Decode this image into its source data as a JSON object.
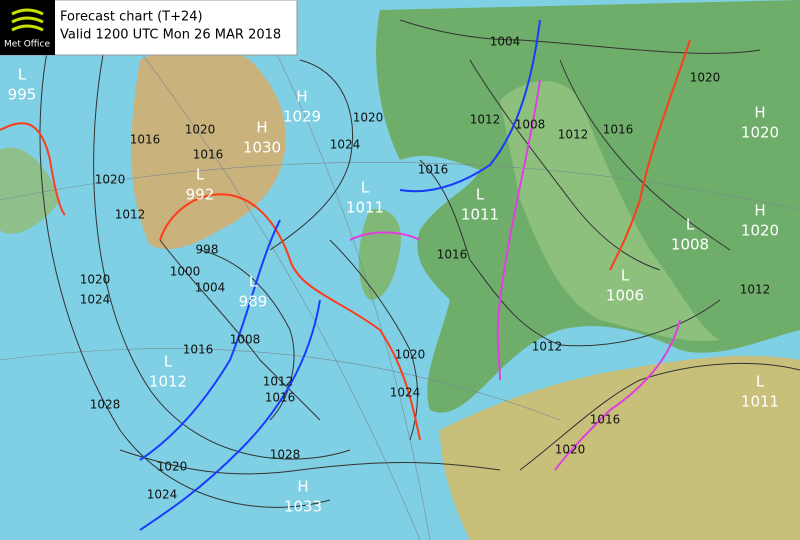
{
  "header": {
    "logo": "Met Office",
    "title": "Forecast chart (T+24)",
    "valid": "Valid 1200 UTC Mon 26 MAR 2018"
  },
  "centers": [
    {
      "type": "L",
      "pressure": 995
    },
    {
      "type": "L",
      "pressure": 992
    },
    {
      "type": "H",
      "pressure": 1029
    },
    {
      "type": "H",
      "pressure": 1030
    },
    {
      "type": "L",
      "pressure": 1011
    },
    {
      "type": "L",
      "pressure": 1011
    },
    {
      "type": "L",
      "pressure": 989
    },
    {
      "type": "L",
      "pressure": 1012
    },
    {
      "type": "H",
      "pressure": 1033
    },
    {
      "type": "L",
      "pressure": 1008
    },
    {
      "type": "L",
      "pressure": 1006
    },
    {
      "type": "H",
      "pressure": 1020
    },
    {
      "type": "H",
      "pressure": 1020
    },
    {
      "type": "L",
      "pressure": 1011
    }
  ],
  "isobar_labels": [
    1004,
    1020,
    1020,
    1024,
    1016,
    1020,
    1012,
    1016,
    1012,
    1008,
    1012,
    1016,
    1016,
    1012,
    1020,
    1024,
    1016,
    1008,
    1012,
    1016,
    1028,
    1020,
    1024,
    1028,
    1020,
    1024,
    1020,
    1016,
    1012,
    1000,
    1004,
    998,
    1020,
    1016
  ]
}
